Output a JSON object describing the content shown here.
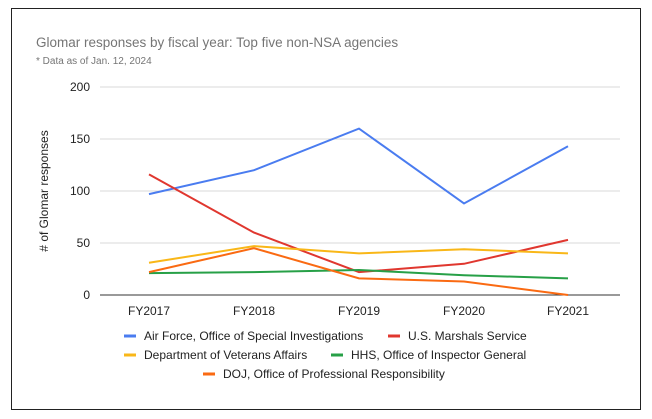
{
  "chart_data": {
    "type": "line",
    "title": "Glomar responses by fiscal year: Top five non-NSA agencies",
    "subtitle": "* Data as of Jan. 12, 2024",
    "xlabel": "",
    "ylabel": "# of Glomar responses",
    "ylim": [
      0,
      200
    ],
    "yticks": [
      "0",
      "50",
      "100",
      "150",
      "200"
    ],
    "ytick_values": [
      0,
      50,
      100,
      150,
      200
    ],
    "grid": true,
    "legend_position": "bottom",
    "categories": [
      "FY2017",
      "FY2018",
      "FY2019",
      "FY2020",
      "FY2021"
    ],
    "series": [
      {
        "name": "Air Force, Office of Special Investigations",
        "color": "#4a7cf0",
        "values": [
          97,
          120,
          160,
          88,
          143
        ]
      },
      {
        "name": "U.S. Marshals Service",
        "color": "#e0372f",
        "values": [
          116,
          60,
          22,
          30,
          53
        ]
      },
      {
        "name": "Department of Veterans Affairs",
        "color": "#f9b718",
        "values": [
          31,
          47,
          40,
          44,
          40
        ]
      },
      {
        "name": "HHS, Office of Inspector General",
        "color": "#27a047",
        "values": [
          21,
          22,
          24,
          19,
          16
        ]
      },
      {
        "name": "DOJ, Office of Professional Responsibility",
        "color": "#fa6a12",
        "values": [
          22,
          45,
          16,
          13,
          0
        ]
      }
    ]
  }
}
